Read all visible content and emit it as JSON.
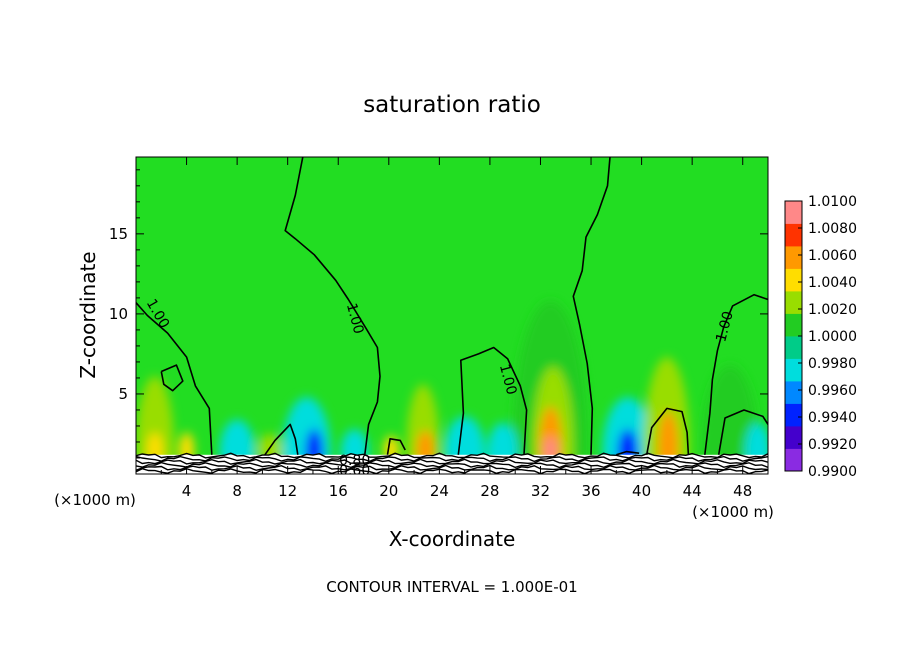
{
  "chart_data": {
    "type": "heatmap",
    "title": "saturation ratio",
    "xlabel": "X-coordinate",
    "ylabel": "Z-coordinate",
    "x_unit_left": "(×1000 m)",
    "x_unit_right": "(×1000 m)",
    "footer": "CONTOUR INTERVAL = 1.000E-01",
    "xlim": [
      0,
      50
    ],
    "ylim": [
      0,
      19.8
    ],
    "x_ticks": [
      4,
      8,
      12,
      16,
      20,
      24,
      28,
      32,
      36,
      40,
      44,
      48
    ],
    "x_tick_labels": [
      "4",
      "8",
      "12",
      "16",
      "20",
      "24",
      "28",
      "32",
      "36",
      "40",
      "44",
      "48"
    ],
    "y_ticks": [
      5,
      10,
      15
    ],
    "y_tick_labels": [
      "5",
      "10",
      "15"
    ],
    "colorbar": {
      "range": [
        0.99,
        1.01
      ],
      "labels": [
        "1.0100",
        "1.0080",
        "1.0060",
        "1.0040",
        "1.0020",
        "1.0000",
        "0.9980",
        "0.9960",
        "0.9940",
        "0.9920",
        "0.9900"
      ],
      "colors": [
        "#8a2be2",
        "#4400cc",
        "#0022ff",
        "#0088ff",
        "#00dddd",
        "#00cc88",
        "#22cc22",
        "#99dd00",
        "#ffdd00",
        "#ff9900",
        "#ff3300",
        "#ff8888"
      ]
    },
    "background_value": 1.0002,
    "background_color": "#22dd22",
    "surface_height": 1.2,
    "contour_labels": [
      {
        "text": "1.00",
        "x": 1.7,
        "z": 10.0,
        "angle": 60
      },
      {
        "text": "1.00",
        "x": 17.3,
        "z": 9.7,
        "angle": 75
      },
      {
        "text": "1.00",
        "x": 29.4,
        "z": 5.9,
        "angle": 75
      },
      {
        "text": "1.00",
        "x": 46.6,
        "z": 9.2,
        "angle": -75
      },
      {
        "text": "0.80",
        "x": 17.3,
        "z": 0.8,
        "angle": 0
      },
      {
        "text": "0.60",
        "x": 17.3,
        "z": 0.2,
        "angle": 0
      }
    ],
    "contour_lines": [
      {
        "level": 1.0,
        "points": [
          [
            0,
            10.7
          ],
          [
            0.9,
            9.9
          ],
          [
            2.5,
            8.8
          ],
          [
            4.0,
            7.3
          ],
          [
            4.7,
            5.5
          ],
          [
            5.8,
            4.1
          ],
          [
            6.0,
            1.2
          ]
        ]
      },
      {
        "level": 1.0,
        "points": [
          [
            2.0,
            6.4
          ],
          [
            3.2,
            6.8
          ],
          [
            3.7,
            5.8
          ],
          [
            2.9,
            5.2
          ],
          [
            2.2,
            5.6
          ],
          [
            2.0,
            6.4
          ]
        ]
      },
      {
        "level": 1.0,
        "points": [
          [
            13.2,
            19.8
          ],
          [
            12.6,
            17.4
          ],
          [
            11.8,
            15.2
          ],
          [
            12.6,
            14.7
          ],
          [
            14.1,
            13.7
          ],
          [
            15.8,
            12.1
          ],
          [
            16.8,
            10.9
          ],
          [
            18.2,
            9.1
          ],
          [
            19.1,
            7.9
          ],
          [
            19.3,
            6.1
          ],
          [
            19.1,
            4.5
          ],
          [
            18.4,
            3.1
          ],
          [
            18.1,
            1.2
          ]
        ]
      },
      {
        "level": 1.0,
        "points": [
          [
            25.5,
            1.2
          ],
          [
            25.9,
            3.8
          ],
          [
            25.7,
            7.1
          ],
          [
            27.1,
            7.5
          ],
          [
            28.3,
            7.9
          ],
          [
            29.4,
            7.2
          ],
          [
            30.4,
            5.5
          ],
          [
            30.9,
            4.0
          ],
          [
            30.7,
            1.2
          ]
        ]
      },
      {
        "level": 1.0,
        "points": [
          [
            37.5,
            19.8
          ],
          [
            37.3,
            18.0
          ],
          [
            36.5,
            16.2
          ],
          [
            35.6,
            14.8
          ],
          [
            35.3,
            12.7
          ],
          [
            34.6,
            11.1
          ],
          [
            35.1,
            9.3
          ],
          [
            35.7,
            6.9
          ],
          [
            36.1,
            4.1
          ],
          [
            36.0,
            1.2
          ]
        ]
      },
      {
        "level": 1.0,
        "points": [
          [
            50,
            10.9
          ],
          [
            48.9,
            11.2
          ],
          [
            47.2,
            10.5
          ],
          [
            46.5,
            9.2
          ],
          [
            46.0,
            7.7
          ],
          [
            45.6,
            5.9
          ],
          [
            45.4,
            3.8
          ],
          [
            45.0,
            1.2
          ]
        ]
      },
      {
        "level": 1.0,
        "points": [
          [
            10.2,
            1.2
          ],
          [
            11.0,
            2.1
          ],
          [
            12.2,
            3.1
          ],
          [
            12.6,
            2.2
          ],
          [
            12.8,
            1.2
          ]
        ]
      },
      {
        "level": 1.0,
        "points": [
          [
            19.9,
            1.2
          ],
          [
            20.1,
            2.2
          ],
          [
            20.9,
            2.1
          ],
          [
            21.3,
            1.5
          ]
        ]
      },
      {
        "level": 1.0,
        "points": [
          [
            40.4,
            1.2
          ],
          [
            40.8,
            2.9
          ],
          [
            42.0,
            4.1
          ],
          [
            43.2,
            3.9
          ],
          [
            43.6,
            2.6
          ],
          [
            43.7,
            1.2
          ]
        ]
      },
      {
        "level": 1.0,
        "points": [
          [
            46.1,
            1.2
          ],
          [
            46.6,
            3.5
          ],
          [
            48.1,
            4.0
          ],
          [
            49.6,
            3.6
          ],
          [
            50,
            3.1
          ]
        ]
      },
      {
        "level": 1.0,
        "points": [
          [
            38.0,
            1.2
          ],
          [
            38.8,
            1.4
          ],
          [
            39.8,
            1.3
          ]
        ]
      }
    ],
    "anomalies": [
      {
        "x": 1.5,
        "z": 1.6,
        "rx": 1.5,
        "rz": 4.5,
        "value": 1.0022
      },
      {
        "x": 1.5,
        "z": 1.5,
        "rx": 0.6,
        "rz": 1.1,
        "value": 1.0048
      },
      {
        "x": 4.0,
        "z": 1.5,
        "rx": 0.6,
        "rz": 1.1,
        "value": 1.0046
      },
      {
        "x": 13.5,
        "z": 1.4,
        "rx": 1.9,
        "rz": 3.4,
        "value": 0.9972
      },
      {
        "x": 14.1,
        "z": 1.4,
        "rx": 0.7,
        "rz": 1.4,
        "value": 0.9935
      },
      {
        "x": 10.6,
        "z": 1.5,
        "rx": 1.0,
        "rz": 1.0,
        "value": 1.003
      },
      {
        "x": 22.7,
        "z": 1.6,
        "rx": 1.3,
        "rz": 4.0,
        "value": 1.0018
      },
      {
        "x": 22.9,
        "z": 1.5,
        "rx": 0.7,
        "rz": 1.2,
        "value": 1.0064
      },
      {
        "x": 20.2,
        "z": 1.5,
        "rx": 0.6,
        "rz": 0.9,
        "value": 1.0042
      },
      {
        "x": 26.0,
        "z": 1.4,
        "rx": 1.6,
        "rz": 2.2,
        "value": 0.9975
      },
      {
        "x": 32.8,
        "z": 1.8,
        "rx": 3.0,
        "rz": 9.0,
        "value": 1.0014
      },
      {
        "x": 33.0,
        "z": 1.7,
        "rx": 1.6,
        "rz": 5.0,
        "value": 1.0028
      },
      {
        "x": 32.8,
        "z": 1.6,
        "rx": 0.9,
        "rz": 2.6,
        "value": 1.0064
      },
      {
        "x": 32.8,
        "z": 1.5,
        "rx": 0.45,
        "rz": 0.8,
        "value": 1.0095
      },
      {
        "x": 38.9,
        "z": 1.4,
        "rx": 2.0,
        "rz": 3.4,
        "value": 0.9972
      },
      {
        "x": 38.9,
        "z": 1.4,
        "rx": 0.8,
        "rz": 1.4,
        "value": 0.9935
      },
      {
        "x": 42.0,
        "z": 1.7,
        "rx": 1.8,
        "rz": 5.6,
        "value": 1.002
      },
      {
        "x": 42.1,
        "z": 1.6,
        "rx": 0.8,
        "rz": 2.3,
        "value": 1.006
      },
      {
        "x": 47.0,
        "z": 1.6,
        "rx": 2.2,
        "rz": 5.2,
        "value": 1.0014
      },
      {
        "x": 49.2,
        "z": 1.4,
        "rx": 1.0,
        "rz": 1.8,
        "value": 0.9968
      },
      {
        "x": 8.0,
        "z": 1.4,
        "rx": 1.4,
        "rz": 2.0,
        "value": 0.9978
      },
      {
        "x": 29.0,
        "z": 1.4,
        "rx": 1.2,
        "rz": 1.8,
        "value": 0.9978
      },
      {
        "x": 17.3,
        "z": 1.4,
        "rx": 1.1,
        "rz": 1.4,
        "value": 0.997
      }
    ]
  }
}
